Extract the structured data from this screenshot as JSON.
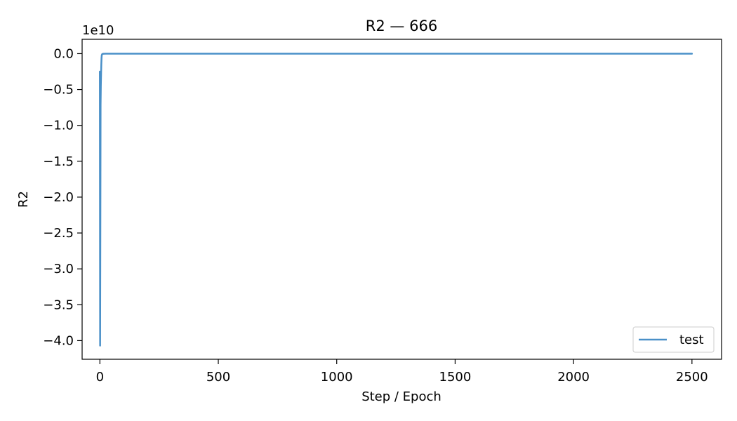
{
  "chart_data": {
    "type": "line",
    "title": "R2 — 666",
    "xlabel": "Step / Epoch",
    "ylabel": "R2",
    "y_multiplier_label": "1e10",
    "xlim": [
      -75,
      2625
    ],
    "ylim": [
      -4.26,
      0.2
    ],
    "xticks": [
      0,
      500,
      1000,
      1500,
      2000,
      2500
    ],
    "xtick_labels": [
      "0",
      "500",
      "1000",
      "1500",
      "2000",
      "2500"
    ],
    "yticks": [
      0.0,
      -0.5,
      -1.0,
      -1.5,
      -2.0,
      -2.5,
      -3.0,
      -3.5,
      -4.0
    ],
    "ytick_labels": [
      "0.0",
      "−0.5",
      "−1.0",
      "−1.5",
      "−2.0",
      "−2.5",
      "−3.0",
      "−3.5",
      "−4.0"
    ],
    "grid": false,
    "legend_position": "lower-right",
    "series": [
      {
        "name": "test",
        "color": "#4a90c8",
        "x": [
          0,
          1,
          2,
          3,
          4,
          5,
          6,
          7,
          8,
          10,
          15,
          25,
          50,
          100,
          200,
          500,
          1000,
          1500,
          2000,
          2500
        ],
        "y": [
          -0.25,
          -4.07,
          -2.5,
          -0.72,
          -0.45,
          -0.3,
          -0.15,
          -0.06,
          -0.02,
          -0.005,
          -0.002,
          -0.001,
          0,
          0,
          0,
          0,
          0,
          0,
          0,
          0
        ]
      }
    ]
  }
}
